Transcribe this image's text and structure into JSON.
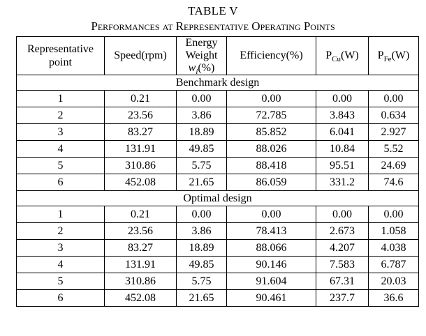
{
  "table_label": "TABLE V",
  "table_title": "Performances at Representative Operating Points",
  "headers": {
    "point": "Representative point",
    "speed": "Speed(rpm)",
    "weight_line1": "Energy",
    "weight_line2": "Weight",
    "weight_symbol": "w",
    "weight_subscript": "i",
    "weight_unit": "(%)",
    "efficiency": "Efficiency(%)",
    "pcu_symbol": "P",
    "pcu_subscript": "Cu",
    "pcu_unit": "(W)",
    "pfe_symbol": "P",
    "pfe_subscript": "Fe",
    "pfe_unit": "(W)"
  },
  "sections": [
    {
      "title": "Benchmark design",
      "rows": [
        {
          "point": "1",
          "speed": "0.21",
          "weight": "0.00",
          "efficiency": "0.00",
          "pcu": "0.00",
          "pfe": "0.00"
        },
        {
          "point": "2",
          "speed": "23.56",
          "weight": "3.86",
          "efficiency": "72.785",
          "pcu": "3.843",
          "pfe": "0.634"
        },
        {
          "point": "3",
          "speed": "83.27",
          "weight": "18.89",
          "efficiency": "85.852",
          "pcu": "6.041",
          "pfe": "2.927"
        },
        {
          "point": "4",
          "speed": "131.91",
          "weight": "49.85",
          "efficiency": "88.026",
          "pcu": "10.84",
          "pfe": "5.52"
        },
        {
          "point": "5",
          "speed": "310.86",
          "weight": "5.75",
          "efficiency": "88.418",
          "pcu": "95.51",
          "pfe": "24.69"
        },
        {
          "point": "6",
          "speed": "452.08",
          "weight": "21.65",
          "efficiency": "86.059",
          "pcu": "331.2",
          "pfe": "74.6"
        }
      ]
    },
    {
      "title": "Optimal design",
      "rows": [
        {
          "point": "1",
          "speed": "0.21",
          "weight": "0.00",
          "efficiency": "0.00",
          "pcu": "0.00",
          "pfe": "0.00"
        },
        {
          "point": "2",
          "speed": "23.56",
          "weight": "3.86",
          "efficiency": "78.413",
          "pcu": "2.673",
          "pfe": "1.058"
        },
        {
          "point": "3",
          "speed": "83.27",
          "weight": "18.89",
          "efficiency": "88.066",
          "pcu": "4.207",
          "pfe": "4.038"
        },
        {
          "point": "4",
          "speed": "131.91",
          "weight": "49.85",
          "efficiency": "90.146",
          "pcu": "7.583",
          "pfe": "6.787"
        },
        {
          "point": "5",
          "speed": "310.86",
          "weight": "5.75",
          "efficiency": "91.604",
          "pcu": "67.31",
          "pfe": "20.03"
        },
        {
          "point": "6",
          "speed": "452.08",
          "weight": "21.65",
          "efficiency": "90.461",
          "pcu": "237.7",
          "pfe": "36.6"
        }
      ]
    }
  ]
}
